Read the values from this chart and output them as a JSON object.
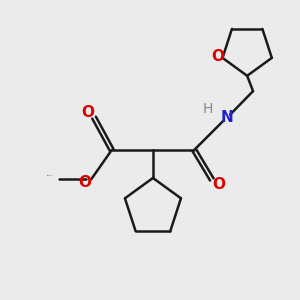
{
  "bg_color": "#ebebeb",
  "bond_color": "#1a1a1a",
  "oxygen_color": "#dd0000",
  "nitrogen_color": "#2222cc",
  "hydrogen_color": "#888888",
  "line_width": 1.8,
  "figsize": [
    3.0,
    3.0
  ],
  "dpi": 100,
  "xlim": [
    0,
    10
  ],
  "ylim": [
    0,
    10
  ]
}
